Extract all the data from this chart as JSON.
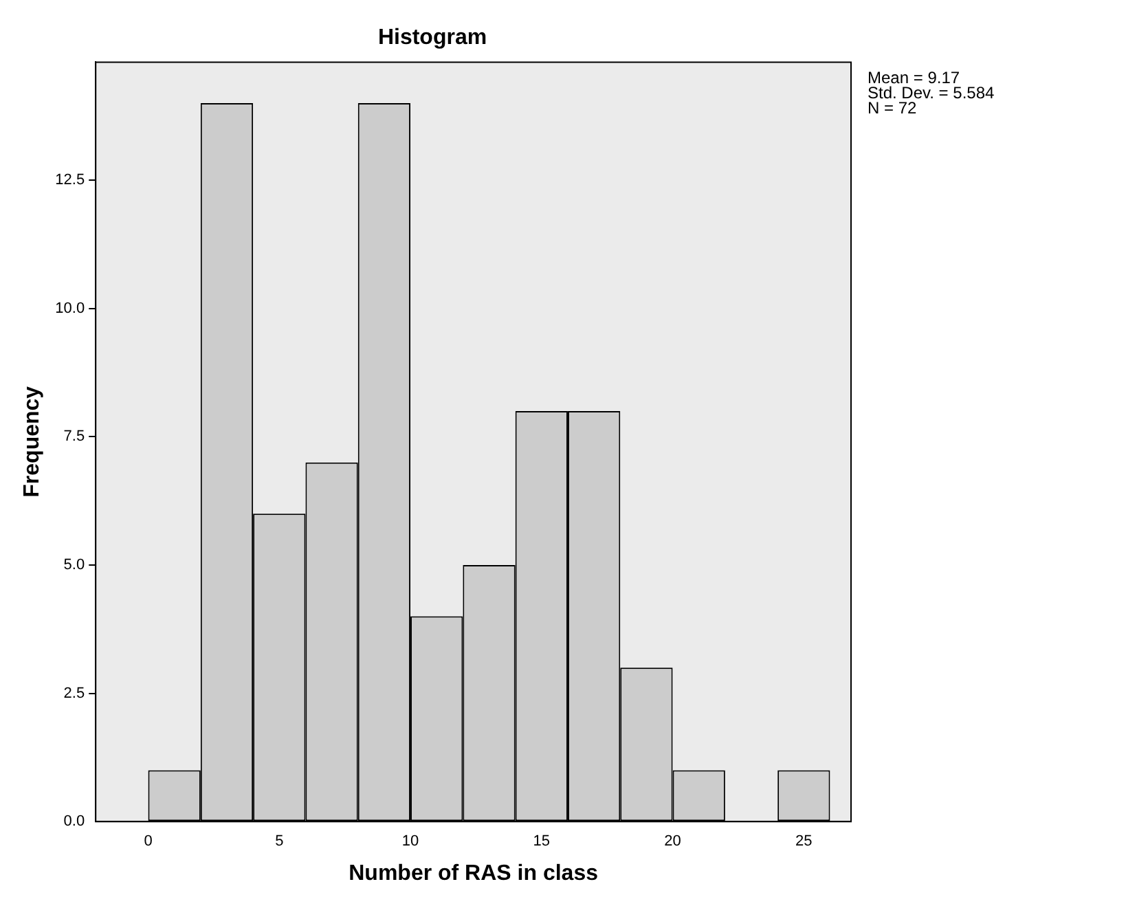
{
  "chart_data": {
    "type": "histogram",
    "title": "Histogram",
    "xlabel": "Number of RAS in class",
    "ylabel": "Frequency",
    "bins": [
      0,
      2,
      4,
      6,
      8,
      10,
      12,
      14,
      16,
      18,
      20,
      22,
      24,
      26
    ],
    "values": [
      1,
      14,
      6,
      7,
      14,
      4,
      5,
      8,
      8,
      3,
      1,
      0,
      1
    ],
    "color": "#cccccc",
    "xlim": [
      -2,
      26.8
    ],
    "ylim": [
      0,
      14.8
    ],
    "xticks": [
      0,
      5,
      10,
      15,
      20,
      25
    ],
    "yticks": [
      {
        "value": 0,
        "label": "0.0"
      },
      {
        "value": 2.5,
        "label": "2.5"
      },
      {
        "value": 5,
        "label": "5.0"
      },
      {
        "value": 7.5,
        "label": "7.5"
      },
      {
        "value": 10,
        "label": "10.0"
      },
      {
        "value": 12.5,
        "label": "12.5"
      }
    ],
    "annotations": [
      "Mean = 9.17",
      "Std. Dev. = 5.584",
      "N = 72"
    ]
  }
}
